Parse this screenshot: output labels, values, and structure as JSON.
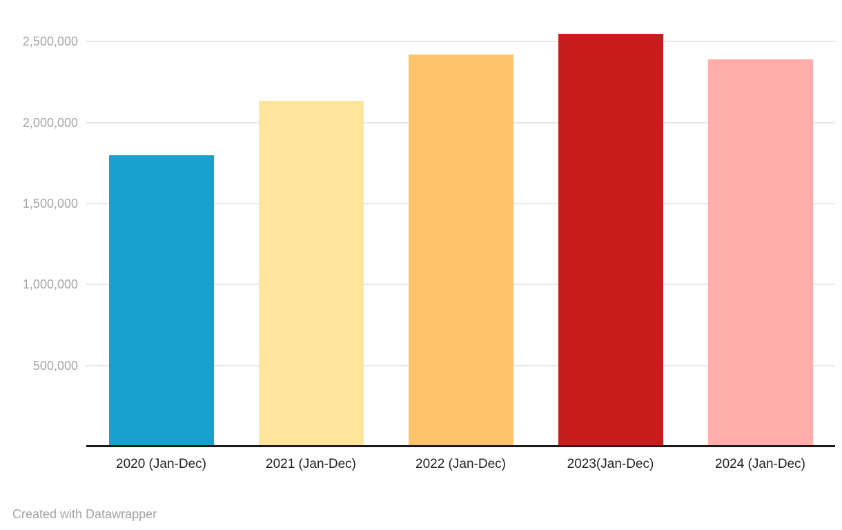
{
  "chart_data": {
    "type": "bar",
    "categories": [
      "2020 (Jan-Dec)",
      "2021 (Jan-Dec)",
      "2022 (Jan-Dec)",
      "2023(Jan-Dec)",
      "2024 (Jan-Dec)"
    ],
    "values": [
      1800000,
      2135000,
      2420000,
      2550000,
      2390000
    ],
    "bar_colors": [
      "#18a1cd",
      "#ffe59c",
      "#fdc36a",
      "#c71e1d",
      "#ffaeab"
    ],
    "title": "",
    "xlabel": "",
    "ylabel": "",
    "ylim": [
      0,
      2500000
    ],
    "yticks": [
      {
        "value": 500000,
        "label": "500,000"
      },
      {
        "value": 1000000,
        "label": "1,000,000"
      },
      {
        "value": 1500000,
        "label": "1,500,000"
      },
      {
        "value": 2000000,
        "label": "2,000,000"
      },
      {
        "value": 2500000,
        "label": "2,500,000"
      }
    ],
    "grid": "horizontal",
    "legend": "none"
  },
  "footer": {
    "credit": "Created with Datawrapper"
  },
  "colors": {
    "background": "#ffffff",
    "gridline": "#e8e8e8",
    "axis_line": "#1a1a1a",
    "y_tick_label": "#a6a6a6",
    "x_category_label": "#222222",
    "footer_text": "#a3a3a3"
  }
}
